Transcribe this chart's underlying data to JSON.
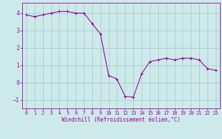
{
  "x": [
    0,
    1,
    2,
    3,
    4,
    5,
    6,
    7,
    8,
    9,
    10,
    11,
    12,
    13,
    14,
    15,
    16,
    17,
    18,
    19,
    20,
    21,
    22,
    23
  ],
  "y": [
    3.9,
    3.8,
    3.9,
    4.0,
    4.1,
    4.1,
    4.0,
    4.0,
    3.4,
    2.8,
    0.4,
    0.2,
    -0.8,
    -0.85,
    0.5,
    1.2,
    1.3,
    1.4,
    1.3,
    1.4,
    1.4,
    1.3,
    0.8,
    0.7
  ],
  "line_color": "#990099",
  "marker": "+",
  "marker_size": 3,
  "marker_linewidth": 0.8,
  "line_width": 0.8,
  "background_color": "#cdeaea",
  "grid_color": "#aacccc",
  "xlabel": "Windchill (Refroidissement éolien,°C)",
  "xlim": [
    -0.5,
    23.5
  ],
  "ylim": [
    -1.5,
    4.6
  ],
  "yticks": [
    -1,
    0,
    1,
    2,
    3,
    4
  ],
  "xticks": [
    0,
    1,
    2,
    3,
    4,
    5,
    6,
    7,
    8,
    9,
    10,
    11,
    12,
    13,
    14,
    15,
    16,
    17,
    18,
    19,
    20,
    21,
    22,
    23
  ],
  "tick_color": "#990099",
  "label_color": "#990099",
  "spine_color": "#990099",
  "xtick_fontsize": 5.0,
  "ytick_fontsize": 5.5,
  "xlabel_fontsize": 5.5
}
